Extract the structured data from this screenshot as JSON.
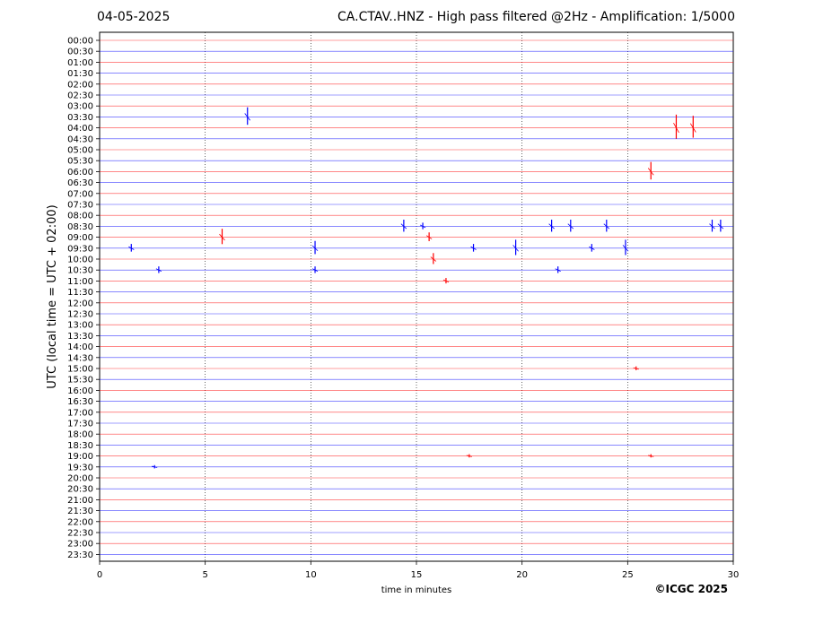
{
  "header": {
    "date": "04-05-2025",
    "title": "CA.CTAV..HNZ - High pass filtered @2Hz - Amplification: 1/5000"
  },
  "footer": {
    "copyright": "©ICGC 2025"
  },
  "colors": {
    "trace_a": "#ff0000",
    "trace_b": "#0000ff",
    "grid": "#000000"
  },
  "chart_data": {
    "type": "line",
    "title": "CA.CTAV..HNZ - High pass filtered @2Hz - Amplification: 1/5000",
    "xlabel": "time in minutes",
    "ylabel": "UTC (local time = UTC + 02:00)",
    "xlim": [
      0,
      30
    ],
    "x_ticks": [
      "0",
      "5",
      "10",
      "15",
      "20",
      "25",
      "30"
    ],
    "y_ticks": [
      "00:00",
      "00:30",
      "01:00",
      "01:30",
      "02:00",
      "02:30",
      "03:00",
      "03:30",
      "04:00",
      "04:30",
      "05:00",
      "05:30",
      "06:00",
      "06:30",
      "07:00",
      "07:30",
      "08:00",
      "08:30",
      "09:00",
      "09:30",
      "10:00",
      "10:30",
      "11:00",
      "11:30",
      "12:00",
      "12:30",
      "13:00",
      "13:30",
      "14:00",
      "14:30",
      "15:00",
      "15:30",
      "16:00",
      "16:30",
      "17:00",
      "17:30",
      "18:00",
      "18:30",
      "19:00",
      "19:30",
      "20:00",
      "20:30",
      "21:00",
      "21:30",
      "22:00",
      "22:30",
      "23:00",
      "23:30"
    ],
    "vertical_grid_minutes": [
      5,
      10,
      15,
      20,
      25
    ],
    "grid": "dotted vertical",
    "line_colors_alternate": [
      "red",
      "blue"
    ],
    "events": [
      {
        "row": "03:30",
        "minute": 7.0,
        "amplitude": 1.6
      },
      {
        "row": "04:00",
        "minute": 27.3,
        "amplitude": 2.2
      },
      {
        "row": "04:00",
        "minute": 28.1,
        "amplitude": 2.0
      },
      {
        "row": "06:00",
        "minute": 26.1,
        "amplitude": 1.6
      },
      {
        "row": "08:30",
        "minute": 14.4,
        "amplitude": 1.1
      },
      {
        "row": "08:30",
        "minute": 15.3,
        "amplitude": 0.6
      },
      {
        "row": "08:30",
        "minute": 21.4,
        "amplitude": 1.1
      },
      {
        "row": "08:30",
        "minute": 22.3,
        "amplitude": 1.1
      },
      {
        "row": "08:30",
        "minute": 24.0,
        "amplitude": 1.1
      },
      {
        "row": "08:30",
        "minute": 29.0,
        "amplitude": 1.1
      },
      {
        "row": "08:30",
        "minute": 29.4,
        "amplitude": 1.1
      },
      {
        "row": "09:00",
        "minute": 5.8,
        "amplitude": 1.4
      },
      {
        "row": "09:00",
        "minute": 15.6,
        "amplitude": 0.8
      },
      {
        "row": "09:30",
        "minute": 1.5,
        "amplitude": 0.7
      },
      {
        "row": "09:30",
        "minute": 10.2,
        "amplitude": 1.2
      },
      {
        "row": "09:30",
        "minute": 17.7,
        "amplitude": 0.7
      },
      {
        "row": "09:30",
        "minute": 19.7,
        "amplitude": 1.4
      },
      {
        "row": "09:30",
        "minute": 23.3,
        "amplitude": 0.7
      },
      {
        "row": "09:30",
        "minute": 24.9,
        "amplitude": 1.4
      },
      {
        "row": "10:00",
        "minute": 15.8,
        "amplitude": 1.0
      },
      {
        "row": "10:30",
        "minute": 10.2,
        "amplitude": 0.6
      },
      {
        "row": "10:30",
        "minute": 2.8,
        "amplitude": 0.6
      },
      {
        "row": "10:30",
        "minute": 21.7,
        "amplitude": 0.6
      },
      {
        "row": "11:00",
        "minute": 16.4,
        "amplitude": 0.5
      },
      {
        "row": "15:00",
        "minute": 25.4,
        "amplitude": 0.35
      },
      {
        "row": "19:00",
        "minute": 17.5,
        "amplitude": 0.3
      },
      {
        "row": "19:00",
        "minute": 26.1,
        "amplitude": 0.3
      },
      {
        "row": "19:30",
        "minute": 2.6,
        "amplitude": 0.3
      }
    ]
  }
}
